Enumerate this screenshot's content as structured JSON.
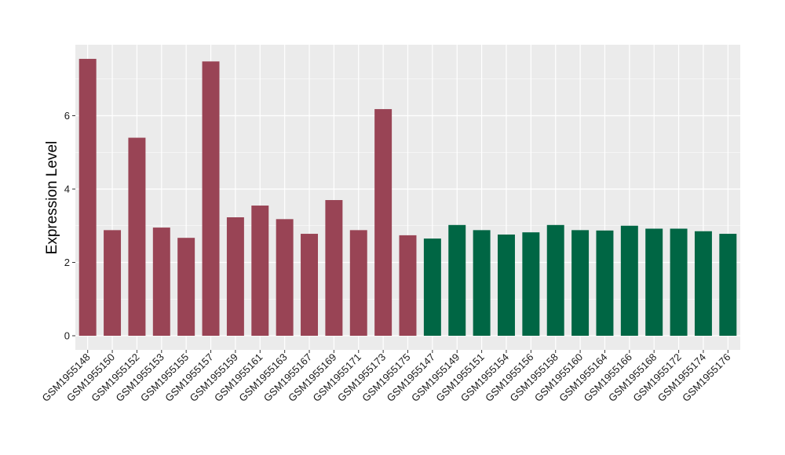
{
  "chart_data": {
    "type": "bar",
    "title": "",
    "xlabel": "",
    "ylabel": "Expression Level",
    "ylim": [
      -0.4,
      7.8
    ],
    "yticks": [
      0,
      2,
      4,
      6
    ],
    "grid": true,
    "legend": "none",
    "categories": [
      "GSM1955148",
      "GSM1955150",
      "GSM1955152",
      "GSM1955153",
      "GSM1955155",
      "GSM1955157",
      "GSM1955159",
      "GSM1955161",
      "GSM1955163",
      "GSM1955167",
      "GSM1955169",
      "GSM1955171",
      "GSM1955173",
      "GSM1955175",
      "GSM1955147",
      "GSM1955149",
      "GSM1955151",
      "GSM1955154",
      "GSM1955156",
      "GSM1955158",
      "GSM1955160",
      "GSM1955164",
      "GSM1955166",
      "GSM1955168",
      "GSM1955172",
      "GSM1955174",
      "GSM1955176"
    ],
    "values": [
      7.55,
      2.88,
      5.4,
      2.95,
      2.67,
      7.48,
      3.23,
      3.55,
      3.18,
      2.78,
      3.7,
      2.88,
      6.18,
      2.74,
      2.65,
      3.02,
      2.88,
      2.76,
      2.82,
      3.02,
      2.88,
      2.87,
      3.0,
      2.92,
      2.92,
      2.85,
      2.78
    ],
    "groups": [
      "group1",
      "group1",
      "group1",
      "group1",
      "group1",
      "group1",
      "group1",
      "group1",
      "group1",
      "group1",
      "group1",
      "group1",
      "group1",
      "group1",
      "group2",
      "group2",
      "group2",
      "group2",
      "group2",
      "group2",
      "group2",
      "group2",
      "group2",
      "group2",
      "group2",
      "group2",
      "group2"
    ],
    "colors": {
      "group1": "#994455",
      "group2": "#006644"
    },
    "panel_background": "#ebebeb",
    "grid_color": "#ffffff"
  }
}
